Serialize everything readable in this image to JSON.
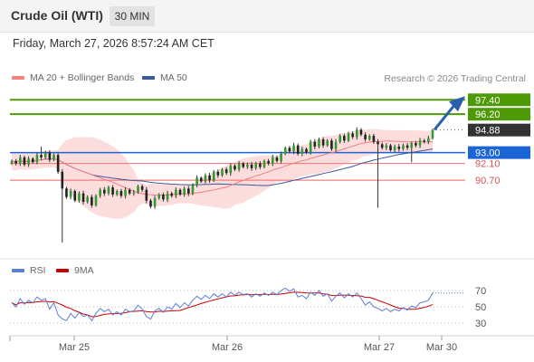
{
  "header": {
    "title": "Crude Oil (WTI)",
    "timeframe": "30 MIN",
    "datetime": "Friday, March 27, 2026 8:57:24 AM CET"
  },
  "legend": {
    "ma20_label": "MA 20 + Bollinger Bands",
    "ma20_color": "#f48080",
    "ma50_label": "MA 50",
    "ma50_color": "#3b5998",
    "credit": "Research © 2026 Trading Central"
  },
  "rsi_legend": {
    "rsi_label": "RSI",
    "rsi_color": "#5b7fd6",
    "ma9_label": "9MA",
    "ma9_color": "#cc0000"
  },
  "chart_data": [
    {
      "type": "candlestick",
      "title": "Crude Oil (WTI)",
      "timeframe": "30 MIN",
      "x_tick_labels": [
        "Mar 25",
        "Mar 26",
        "Mar 27",
        "Mar 30"
      ],
      "ylim": [
        84.6,
        98.4
      ],
      "grid": false,
      "current_price": 94.88,
      "levels": [
        {
          "price": 97.4,
          "label": "97.40",
          "kind": "target",
          "color": "#4e9a06"
        },
        {
          "price": 96.2,
          "label": "96.20",
          "kind": "target",
          "color": "#4e9a06"
        },
        {
          "price": 94.88,
          "label": "94.88",
          "kind": "last",
          "color": "#333333"
        },
        {
          "price": 93.0,
          "label": "93.00",
          "kind": "pivot",
          "color": "#1a64d6"
        },
        {
          "price": 92.1,
          "label": "92.10",
          "kind": "support",
          "color": "#f08080"
        },
        {
          "price": 90.7,
          "label": "90.70",
          "kind": "support",
          "color": "#f08080"
        }
      ],
      "close": [
        92.3,
        92.1,
        92.6,
        92.0,
        92.5,
        92.2,
        92.8,
        92.6,
        93.0,
        92.4,
        92.8,
        91.4,
        90.0,
        89.3,
        89.8,
        89.0,
        89.6,
        88.9,
        89.3,
        88.6,
        89.4,
        89.9,
        89.6,
        90.1,
        89.5,
        89.8,
        89.4,
        89.9,
        89.6,
        89.7,
        90.2,
        89.9,
        89.0,
        88.5,
        89.2,
        89.5,
        89.1,
        89.6,
        89.4,
        89.9,
        89.5,
        90.0,
        89.6,
        90.3,
        90.9,
        90.6,
        91.1,
        90.7,
        91.4,
        91.1,
        91.6,
        91.3,
        91.9,
        91.6,
        92.1,
        91.8,
        92.0,
        91.7,
        92.1,
        91.8,
        92.3,
        92.1,
        92.6,
        92.3,
        92.9,
        93.4,
        93.1,
        93.6,
        92.9,
        93.3,
        93.0,
        93.9,
        93.5,
        94.1,
        93.6,
        94.0,
        93.3,
        93.9,
        94.4,
        94.0,
        94.6,
        94.3,
        94.9,
        94.5,
        94.1,
        94.4,
        93.9,
        93.7,
        93.4,
        93.6,
        93.2,
        93.5,
        93.3,
        93.6,
        93.4,
        93.8,
        93.6,
        94.0,
        93.9,
        94.2,
        94.88
      ],
      "moving_averages": [
        "MA 20",
        "MA 50"
      ],
      "indicator": "Bollinger Bands"
    },
    {
      "type": "line",
      "title": "RSI",
      "series": [
        {
          "name": "RSI",
          "color": "#5b7fd6"
        },
        {
          "name": "9MA",
          "color": "#cc0000"
        }
      ],
      "ylim": [
        20,
        80
      ],
      "y_ticks": [
        70,
        50,
        30
      ],
      "y_tick_labels": [
        "70",
        "50",
        "30"
      ],
      "rsi": [
        55,
        50,
        60,
        53,
        58,
        55,
        62,
        58,
        60,
        47,
        55,
        40,
        35,
        33,
        42,
        36,
        43,
        38,
        40,
        33,
        42,
        48,
        44,
        47,
        40,
        44,
        40,
        47,
        44,
        45,
        52,
        47,
        38,
        35,
        45,
        48,
        43,
        50,
        47,
        54,
        49,
        55,
        51,
        58,
        63,
        59,
        64,
        60,
        66,
        62,
        66,
        62,
        68,
        64,
        68,
        65,
        66,
        62,
        66,
        63,
        67,
        64,
        68,
        65,
        70,
        73,
        69,
        72,
        62,
        64,
        60,
        68,
        64,
        70,
        63,
        66,
        57,
        63,
        67,
        61,
        66,
        62,
        67,
        60,
        52,
        56,
        50,
        48,
        45,
        48,
        44,
        47,
        45,
        49,
        46,
        51,
        49,
        55,
        56,
        58,
        67
      ]
    }
  ]
}
